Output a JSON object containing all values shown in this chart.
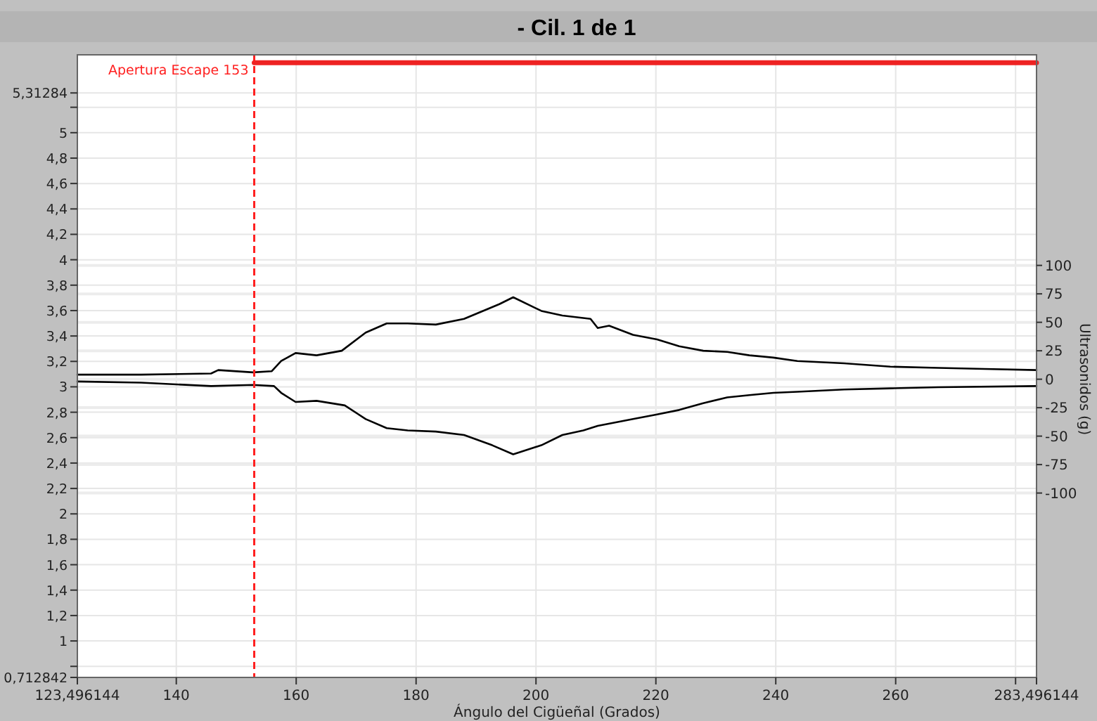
{
  "chart_data": {
    "type": "line",
    "title": "-  Cil. 1 de 1",
    "xlabel": "Ángulo del Cigüeñal (Grados)",
    "y2label": "Ultrasonidos (g)",
    "xlim": [
      123.496144,
      283.496144
    ],
    "xticks": [
      {
        "value": 123.496144,
        "label": "123,496144"
      },
      140,
      160,
      180,
      200,
      220,
      240,
      260,
      {
        "value": 280,
        "label": null
      },
      {
        "value": 283.496144,
        "label": "283,496144"
      }
    ],
    "ylim": [
      0.712842,
      5.612842
    ],
    "yticks": [
      {
        "value": 0.712842,
        "label": "0,712842"
      },
      {
        "value": 0.8,
        "label": null
      },
      1,
      {
        "value": 1.2,
        "label": "1,2"
      },
      {
        "value": 1.4,
        "label": "1,4"
      },
      {
        "value": 1.6,
        "label": "1,6"
      },
      {
        "value": 1.8,
        "label": "1,8"
      },
      2,
      {
        "value": 2.2,
        "label": "2,2"
      },
      {
        "value": 2.4,
        "label": "2,4"
      },
      {
        "value": 2.6,
        "label": "2,6"
      },
      {
        "value": 2.8,
        "label": "2,8"
      },
      3,
      {
        "value": 3.2,
        "label": "3,2"
      },
      {
        "value": 3.4,
        "label": "3,4"
      },
      {
        "value": 3.6,
        "label": "3,6"
      },
      {
        "value": 3.8,
        "label": "3,8"
      },
      4,
      {
        "value": 4.2,
        "label": "4,2"
      },
      {
        "value": 4.4,
        "label": "4,4"
      },
      {
        "value": 4.6,
        "label": "4,6"
      },
      {
        "value": 4.8,
        "label": "4,8"
      },
      5,
      {
        "value": 5.2,
        "label": null
      },
      {
        "value": 5.31284,
        "label": "5,31284"
      }
    ],
    "y2lim": [
      -262,
      285
    ],
    "y2ticks": [
      -100,
      -75,
      -50,
      -25,
      0,
      25,
      50,
      75,
      100
    ],
    "grid": true,
    "line_style": "solid",
    "marker": "none",
    "series": [
      {
        "color": "#000000",
        "axis": "y2",
        "x": [
          123.5,
          134.1,
          145.8,
          147,
          152.8,
          155.9,
          157.5,
          159.9,
          163.4,
          167.6,
          171.6,
          175.1,
          178.6,
          183.3,
          188,
          193.9,
          196.2,
          200.9,
          204.4,
          209.1,
          210.3,
          212.2,
          216.2,
          220.2,
          223.9,
          227.9,
          231.9,
          235.6,
          239.6,
          243.6,
          251.4,
          259.1,
          267.1,
          274.8,
          283.49
        ],
        "values": [
          4,
          4,
          5,
          8,
          6,
          7,
          16,
          23,
          21,
          25,
          41,
          49,
          49,
          48,
          53,
          66,
          72,
          60,
          56,
          53,
          45,
          47,
          39,
          35,
          29,
          25,
          24,
          21,
          19,
          16,
          14,
          11,
          10,
          9,
          8
        ]
      },
      {
        "color": "#000000",
        "axis": "y2",
        "x": [
          123.5,
          134.1,
          145.8,
          152.8,
          156.3,
          157.5,
          159.9,
          163.4,
          168.1,
          171.6,
          175.1,
          178.6,
          183.3,
          188,
          192.7,
          196.2,
          200.9,
          204.4,
          207.9,
          210.3,
          216.2,
          220.2,
          223.9,
          227.9,
          231.9,
          235.6,
          239.6,
          243.6,
          251.4,
          259.1,
          267.1,
          283.49
        ],
        "values": [
          -2,
          -3,
          -6,
          -5,
          -6,
          -12,
          -20,
          -19,
          -23,
          -35,
          -43,
          -45,
          -46,
          -49,
          -58,
          -66,
          -58,
          -49,
          -45,
          -41,
          -35,
          -31,
          -27,
          -21,
          -16,
          -14,
          -12,
          -11,
          -9,
          -8,
          -7,
          -6
        ]
      },
      {
        "color": "#ee2222",
        "x": [
          153,
          283.49
        ],
        "values": [
          5.55,
          5.55
        ]
      }
    ],
    "ref_lines": [
      {
        "axis": "x",
        "value": 153,
        "label": "Apertura Escape 153",
        "color": "#ff2020",
        "line_style": "dashed"
      }
    ]
  }
}
